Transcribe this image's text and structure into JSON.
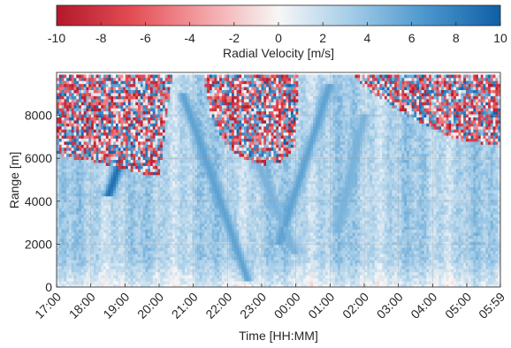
{
  "chart_data": {
    "type": "heatmap",
    "title": "",
    "xlabel": "Time [HH:MM]",
    "ylabel": "Range [m]",
    "x_ticks": [
      "17:00",
      "18:00",
      "19:00",
      "20:00",
      "21:00",
      "22:00",
      "23:00",
      "00:00",
      "01:00",
      "02:00",
      "03:00",
      "04:00",
      "05:00",
      "05:59"
    ],
    "x_tick_hours": [
      0,
      1,
      2,
      3,
      4,
      5,
      6,
      7,
      8,
      9,
      10,
      11,
      12,
      12.983
    ],
    "x_range_hours": [
      0,
      12.983
    ],
    "y_ticks": [
      0,
      2000,
      4000,
      6000,
      8000
    ],
    "ylim": [
      0,
      10000
    ],
    "y_data_top": 9900,
    "grid": true,
    "colorbar": {
      "label": "Radial Velocity [m/s]",
      "placement": "top",
      "range": [
        -10,
        10
      ],
      "ticks": [
        -10,
        -8,
        -6,
        -4,
        -2,
        0,
        2,
        4,
        6,
        8,
        10
      ],
      "colormap": [
        "#b2182b",
        "#e34d54",
        "#f4a5a8",
        "#f7f7f7",
        "#a6cde8",
        "#4b97cd",
        "#0f5fa6"
      ]
    },
    "noise_floor_range_m": [
      [
        0,
        6200
      ],
      [
        0.5,
        6000
      ],
      [
        1,
        5900
      ],
      [
        1.5,
        5700
      ],
      [
        2,
        5500
      ],
      [
        2.5,
        5300
      ],
      [
        3,
        5200
      ],
      [
        3.4,
        10000
      ],
      [
        4.3,
        10000
      ],
      [
        4.5,
        8000
      ],
      [
        5,
        6500
      ],
      [
        5.5,
        6000
      ],
      [
        6,
        5700
      ],
      [
        6.5,
        5800
      ],
      [
        7,
        6500
      ],
      [
        7.1,
        10000
      ],
      [
        8.6,
        10000
      ],
      [
        9,
        9300
      ],
      [
        9.5,
        8800
      ],
      [
        10,
        8200
      ],
      [
        10.5,
        7800
      ],
      [
        11,
        7400
      ],
      [
        11.5,
        7000
      ],
      [
        12,
        6800
      ],
      [
        12.983,
        6600
      ]
    ],
    "dominant_velocity_m_s": 3,
    "dark_streaks": [
      {
        "t0": 2.3,
        "r0": 7800,
        "t1": 1.5,
        "r1": 4200,
        "v": 9
      },
      {
        "t0": 3.7,
        "r0": 9000,
        "t1": 5.6,
        "r1": 300,
        "v": 6
      },
      {
        "t0": 5.2,
        "r0": 8500,
        "t1": 7.0,
        "r1": 1500,
        "v": 5
      },
      {
        "t0": 8.0,
        "r0": 9500,
        "t1": 6.5,
        "r1": 2000,
        "v": 6
      },
      {
        "t0": 9.0,
        "r0": 8000,
        "t1": 8.2,
        "r1": 2500,
        "v": 5
      }
    ]
  }
}
